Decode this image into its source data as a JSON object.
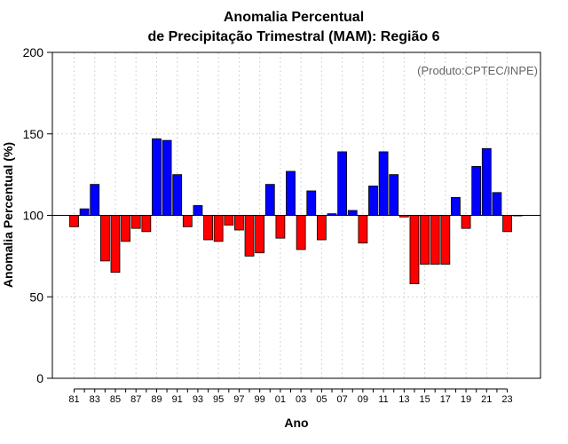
{
  "chart_data": {
    "type": "bar",
    "title_line1": "Anomalia Percentual",
    "title_line2": "de Precipitação Trimestral (MAM): Região 6",
    "xlabel": "Ano",
    "ylabel": "Anomalia Percentual (%)",
    "credit": "(Produto:CPTEC/INPE)",
    "ylim": [
      0,
      200
    ],
    "yticks": [
      "0",
      "50",
      "100",
      "150",
      "200"
    ],
    "baseline": 100,
    "grid": true,
    "colors": {
      "above": "#0000ff",
      "below": "#ff0000",
      "bar_edge": "#000000",
      "grid": "#d3d3d3",
      "reference_line": "#000000"
    },
    "categories": [
      "81",
      "82",
      "83",
      "84",
      "85",
      "86",
      "87",
      "88",
      "89",
      "90",
      "91",
      "92",
      "93",
      "94",
      "95",
      "96",
      "97",
      "98",
      "99",
      "00",
      "01",
      "02",
      "03",
      "04",
      "05",
      "06",
      "07",
      "08",
      "09",
      "10",
      "11",
      "12",
      "13",
      "14",
      "15",
      "16",
      "17",
      "18",
      "19",
      "20",
      "21",
      "22",
      "23",
      "24"
    ],
    "values": [
      93,
      104,
      119,
      72,
      65,
      84,
      92,
      90,
      147,
      146,
      125,
      93,
      106,
      85,
      84,
      94,
      91,
      75,
      77,
      119,
      86,
      127,
      79,
      115,
      85,
      101,
      139,
      103,
      83,
      118,
      139,
      125,
      99,
      58,
      70,
      70,
      70,
      111,
      92,
      130,
      141,
      114,
      90,
      100
    ],
    "xtick_labels": [
      "81",
      "83",
      "85",
      "87",
      "89",
      "91",
      "93",
      "95",
      "97",
      "99",
      "01",
      "03",
      "05",
      "07",
      "09",
      "11",
      "13",
      "15",
      "17",
      "19",
      "21",
      "23"
    ]
  }
}
